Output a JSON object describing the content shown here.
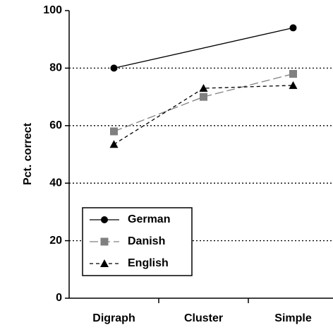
{
  "chart_data": {
    "type": "line",
    "y_label": "Pct. correct",
    "categories": [
      "Digraph",
      "Cluster",
      "Simple"
    ],
    "series": [
      {
        "name": "German",
        "color": "#000000",
        "marker": "circle",
        "dash": "solid",
        "values": [
          80,
          null,
          94
        ]
      },
      {
        "name": "Danish",
        "color": "#808080",
        "marker": "square",
        "dash": "long",
        "values": [
          58,
          70,
          78
        ]
      },
      {
        "name": "English",
        "color": "#000000",
        "marker": "triangle",
        "dash": "short",
        "values": [
          53.5,
          73,
          74
        ]
      }
    ],
    "ylim": [
      0,
      100
    ],
    "yticks": [
      0,
      20,
      40,
      60,
      80,
      100
    ],
    "grid": true,
    "legend": "lower left"
  }
}
